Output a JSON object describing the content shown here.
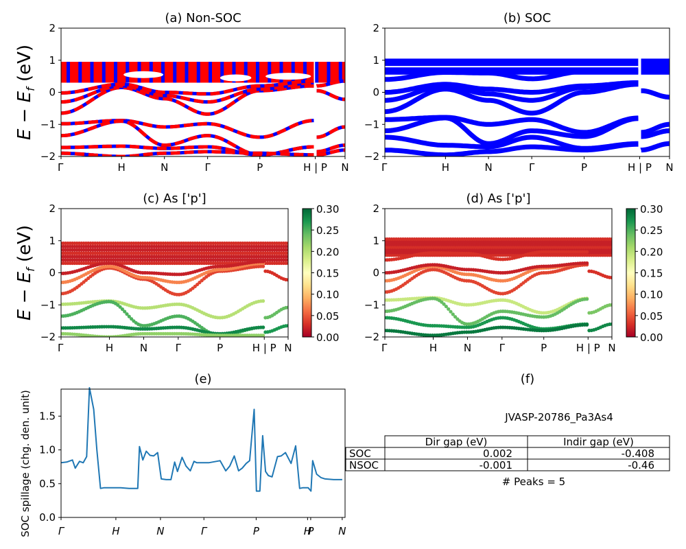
{
  "figure": {
    "ylabel_energy": "E − E_f (eV)",
    "kpath_labels": [
      "Γ",
      "H",
      "N",
      "Γ",
      "P",
      "H | P",
      "N"
    ],
    "kpath_positions": [
      0,
      0.213,
      0.364,
      0.516,
      0.7,
      0.895,
      1.0
    ],
    "energy_ticks": [
      "2",
      "1",
      "0",
      "−1",
      "−2"
    ],
    "energy_range": [
      -2,
      2
    ]
  },
  "chart_data": [
    {
      "id": "a",
      "type": "line",
      "title": "(a) Non-SOC",
      "xlabel": "",
      "ylabel": "E − E_f (eV)",
      "ylim": [
        -2,
        2
      ],
      "x_ticks": [
        "Γ",
        "H",
        "N",
        "Γ",
        "P",
        "H | P",
        "N"
      ],
      "y_ticks": [
        2,
        1,
        0,
        -1,
        -2
      ],
      "colors": [
        "#ff0000",
        "#0000ff"
      ],
      "note": "spin-up (red) / spin-down (blue) dashed bands",
      "bands": [
        {
          "x": [
            0,
            0.213,
            0.364,
            0.516,
            0.7,
            0.89
          ],
          "y": [
            -0.65,
            0.15,
            -0.2,
            -0.68,
            0.05,
            0.2
          ]
        },
        {
          "x": [
            0,
            0.213,
            0.364,
            0.516,
            0.7,
            0.89
          ],
          "y": [
            -0.3,
            0.2,
            -0.1,
            -0.3,
            0.1,
            0.3
          ]
        },
        {
          "x": [
            0,
            0.213,
            0.364,
            0.516,
            0.7,
            0.89
          ],
          "y": [
            -0.02,
            0.25,
            0.0,
            -0.05,
            0.2,
            0.35
          ]
        },
        {
          "x": [
            0.9,
            1.0
          ],
          "y": [
            0.05,
            -0.22
          ]
        },
        {
          "x": [
            0.9,
            1.0
          ],
          "y": [
            0.2,
            0.35
          ]
        },
        {
          "x": [
            0,
            0.213,
            0.364,
            0.516,
            0.7,
            0.89
          ],
          "y": [
            -0.98,
            -0.88,
            -1.08,
            -0.98,
            -1.4,
            -0.88
          ]
        },
        {
          "x": [
            0,
            0.213,
            0.364,
            0.516,
            0.7,
            0.89
          ],
          "y": [
            -1.35,
            -0.9,
            -1.65,
            -1.35,
            -1.95,
            -1.7
          ]
        },
        {
          "x": [
            0,
            0.213,
            0.364,
            0.516,
            0.7,
            0.89
          ],
          "y": [
            -1.72,
            -1.68,
            -1.75,
            -1.7,
            -1.95,
            -1.7
          ]
        },
        {
          "x": [
            0,
            0.213,
            0.364,
            0.516,
            0.7,
            0.89
          ],
          "y": [
            -1.9,
            -2.0,
            -1.9,
            -1.85,
            -1.9,
            -1.95
          ]
        },
        {
          "x": [
            0.9,
            1.0
          ],
          "y": [
            -1.4,
            -1.08
          ]
        },
        {
          "x": [
            0.9,
            1.0
          ],
          "y": [
            -1.85,
            -1.65
          ]
        },
        {
          "x": [
            0.9,
            1.0
          ],
          "y": [
            -1.95,
            -1.8
          ]
        }
      ],
      "dense_region": [
        0.3,
        0.95
      ]
    },
    {
      "id": "b",
      "type": "line",
      "title": "(b) SOC",
      "xlabel": "",
      "ylabel": "",
      "ylim": [
        -2,
        2
      ],
      "x_ticks": [
        "Γ",
        "H",
        "N",
        "Γ",
        "P",
        "H | P",
        "N"
      ],
      "y_ticks": [
        2,
        1,
        0,
        -1,
        -2
      ],
      "colors": [
        "#0000ff"
      ],
      "bands": [
        {
          "x": [
            0,
            0.213,
            0.364,
            0.516,
            0.7,
            0.89
          ],
          "y": [
            -0.6,
            0.1,
            -0.25,
            -0.65,
            0.0,
            0.25
          ]
        },
        {
          "x": [
            0,
            0.213,
            0.364,
            0.516,
            0.7,
            0.89
          ],
          "y": [
            -0.25,
            0.2,
            -0.05,
            -0.25,
            0.15,
            0.3
          ]
        },
        {
          "x": [
            0,
            0.213,
            0.364,
            0.516,
            0.7,
            0.89
          ],
          "y": [
            0.0,
            0.25,
            0.1,
            0.0,
            0.2,
            0.3
          ]
        },
        {
          "x": [
            0,
            0.213,
            0.364,
            0.516,
            0.7,
            0.89
          ],
          "y": [
            0.4,
            0.62,
            0.6,
            0.42,
            0.65,
            0.65
          ]
        },
        {
          "x": [
            0.9,
            1.0
          ],
          "y": [
            0.05,
            -0.15
          ]
        },
        {
          "x": [
            0,
            0.213,
            0.364,
            0.516,
            0.7,
            0.89
          ],
          "y": [
            -0.85,
            -0.78,
            -1.0,
            -0.85,
            -1.25,
            -0.8
          ]
        },
        {
          "x": [
            0,
            0.213,
            0.364,
            0.516,
            0.7,
            0.89
          ],
          "y": [
            -1.2,
            -0.8,
            -1.6,
            -1.2,
            -1.38,
            -0.82
          ]
        },
        {
          "x": [
            0,
            0.213,
            0.364,
            0.516,
            0.7,
            0.89
          ],
          "y": [
            -1.4,
            -1.65,
            -1.7,
            -1.4,
            -1.75,
            -1.6
          ]
        },
        {
          "x": [
            0,
            0.213,
            0.364,
            0.516,
            0.7,
            0.89
          ],
          "y": [
            -1.8,
            -1.95,
            -1.85,
            -1.7,
            -1.8,
            -1.62
          ]
        },
        {
          "x": [
            0.9,
            1.0
          ],
          "y": [
            -1.25,
            -1.0
          ]
        },
        {
          "x": [
            0.9,
            1.0
          ],
          "y": [
            -1.38,
            -1.2
          ]
        },
        {
          "x": [
            0.9,
            1.0
          ],
          "y": [
            -1.8,
            -1.6
          ]
        }
      ],
      "dense_region": [
        0.55,
        1.05
      ]
    },
    {
      "id": "c",
      "type": "scatter",
      "title": "(c)  As ['p']",
      "ylabel": "E − E_f (eV)",
      "ylim": [
        -2,
        2
      ],
      "x_ticks": [
        "Γ",
        "H",
        "N",
        "Γ",
        "P",
        "H | P",
        "N"
      ],
      "y_ticks": [
        2,
        1,
        0,
        -1,
        -2
      ],
      "colorbar": {
        "colormap": "RdYlGn",
        "range": [
          0.0,
          0.3
        ],
        "ticks": [
          "0.30",
          "0.25",
          "0.20",
          "0.15",
          "0.10",
          "0.05",
          "0.00"
        ]
      },
      "bands": [
        {
          "x": [
            0,
            0.213,
            0.364,
            0.516,
            0.7,
            0.89
          ],
          "y": [
            -0.65,
            0.15,
            -0.2,
            -0.68,
            0.05,
            0.2
          ],
          "c": 0.04
        },
        {
          "x": [
            0,
            0.213,
            0.364,
            0.516,
            0.7,
            0.89
          ],
          "y": [
            -0.3,
            0.2,
            -0.15,
            -0.3,
            0.1,
            0.3
          ],
          "c": 0.07
        },
        {
          "x": [
            0,
            0.213,
            0.364,
            0.516,
            0.7,
            0.89
          ],
          "y": [
            -0.02,
            0.3,
            0.0,
            -0.05,
            0.2,
            0.35
          ],
          "c": 0.02
        },
        {
          "x": [
            0.9,
            1.0
          ],
          "y": [
            0.05,
            -0.22
          ],
          "c": 0.03
        },
        {
          "x": [
            0,
            0.213,
            0.364,
            0.516,
            0.7,
            0.89
          ],
          "y": [
            -0.98,
            -0.88,
            -1.1,
            -0.98,
            -1.4,
            -0.88
          ],
          "c": 0.2
        },
        {
          "x": [
            0,
            0.213,
            0.364,
            0.516,
            0.7,
            0.89
          ],
          "y": [
            -1.35,
            -0.9,
            -1.65,
            -1.35,
            -1.95,
            -1.7
          ],
          "c": 0.25
        },
        {
          "x": [
            0,
            0.213,
            0.364,
            0.516,
            0.7,
            0.89
          ],
          "y": [
            -1.72,
            -1.68,
            -1.75,
            -1.7,
            -1.9,
            -1.7
          ],
          "c": 0.28
        },
        {
          "x": [
            0,
            0.213,
            0.364,
            0.516,
            0.7,
            0.89
          ],
          "y": [
            -1.9,
            -2.0,
            -1.9,
            -1.9,
            -1.95,
            -1.95
          ],
          "c": 0.22
        },
        {
          "x": [
            0.9,
            1.0
          ],
          "y": [
            -1.4,
            -1.08
          ],
          "c": 0.24
        },
        {
          "x": [
            0.9,
            1.0
          ],
          "y": [
            -1.85,
            -1.65
          ],
          "c": 0.27
        }
      ],
      "dense_region": [
        0.3,
        0.92
      ]
    },
    {
      "id": "d",
      "type": "scatter",
      "title": "(d) As ['p']",
      "ylabel": "",
      "ylim": [
        -2,
        2
      ],
      "x_ticks": [
        "Γ",
        "H",
        "N",
        "Γ",
        "P",
        "H | P",
        "N"
      ],
      "y_ticks": [
        2,
        1,
        0,
        -1,
        -2
      ],
      "colorbar": {
        "colormap": "RdYlGn",
        "range": [
          0.0,
          0.3
        ],
        "ticks": [
          "0.30",
          "0.25",
          "0.20",
          "0.15",
          "0.10",
          "0.05",
          "0.00"
        ]
      },
      "bands": [
        {
          "x": [
            0,
            0.213,
            0.364,
            0.516,
            0.7,
            0.89
          ],
          "y": [
            -0.6,
            0.1,
            -0.25,
            -0.65,
            0.0,
            0.25
          ],
          "c": 0.04
        },
        {
          "x": [
            0,
            0.213,
            0.364,
            0.516,
            0.7,
            0.89
          ],
          "y": [
            -0.25,
            0.2,
            -0.05,
            -0.25,
            0.15,
            0.3
          ],
          "c": 0.07
        },
        {
          "x": [
            0,
            0.213,
            0.364,
            0.516,
            0.7,
            0.89
          ],
          "y": [
            0.0,
            0.25,
            0.1,
            0.0,
            0.2,
            0.3
          ],
          "c": 0.02
        },
        {
          "x": [
            0,
            0.213,
            0.364,
            0.516,
            0.7,
            0.89
          ],
          "y": [
            0.4,
            0.62,
            0.6,
            0.42,
            0.65,
            0.65
          ],
          "c": 0.03
        },
        {
          "x": [
            0.9,
            1.0
          ],
          "y": [
            0.05,
            -0.15
          ],
          "c": 0.03
        },
        {
          "x": [
            0,
            0.213,
            0.364,
            0.516,
            0.7,
            0.89
          ],
          "y": [
            -0.85,
            -0.78,
            -1.0,
            -0.85,
            -1.25,
            -0.8
          ],
          "c": 0.19
        },
        {
          "x": [
            0,
            0.213,
            0.364,
            0.516,
            0.7,
            0.89
          ],
          "y": [
            -1.2,
            -0.8,
            -1.6,
            -1.2,
            -1.38,
            -0.82
          ],
          "c": 0.24
        },
        {
          "x": [
            0,
            0.213,
            0.364,
            0.516,
            0.7,
            0.89
          ],
          "y": [
            -1.4,
            -1.65,
            -1.7,
            -1.4,
            -1.75,
            -1.6
          ],
          "c": 0.27
        },
        {
          "x": [
            0,
            0.213,
            0.364,
            0.516,
            0.7,
            0.89
          ],
          "y": [
            -1.8,
            -1.95,
            -1.85,
            -1.7,
            -1.8,
            -1.62
          ],
          "c": 0.29
        },
        {
          "x": [
            0.9,
            1.0
          ],
          "y": [
            -1.25,
            -1.0
          ],
          "c": 0.23
        },
        {
          "x": [
            0.9,
            1.0
          ],
          "y": [
            -1.8,
            -1.6
          ],
          "c": 0.28
        }
      ],
      "dense_region": [
        0.55,
        1.05
      ]
    },
    {
      "id": "e",
      "type": "line",
      "title": "(e)",
      "xlabel": "",
      "ylabel": "SOC spillage (chg. den. unit)",
      "ylim": [
        0.0,
        1.9
      ],
      "y_ticks": [
        "0.0",
        "0.5",
        "1.0",
        "1.5"
      ],
      "x_ticks": [
        "Γ",
        "H",
        "N",
        "Γ",
        "P",
        "H",
        "P",
        "N"
      ],
      "x_tick_positions": [
        0,
        0.193,
        0.35,
        0.503,
        0.687,
        0.868,
        0.879,
        0.99
      ],
      "color": "#1f77b4",
      "x": [
        0,
        0.02,
        0.04,
        0.05,
        0.065,
        0.078,
        0.09,
        0.1,
        0.115,
        0.126,
        0.139,
        0.152,
        0.165,
        0.18,
        0.21,
        0.24,
        0.27,
        0.276,
        0.288,
        0.3,
        0.313,
        0.326,
        0.34,
        0.353,
        0.37,
        0.387,
        0.4,
        0.41,
        0.426,
        0.44,
        0.455,
        0.468,
        0.478,
        0.5,
        0.52,
        0.56,
        0.58,
        0.594,
        0.61,
        0.625,
        0.638,
        0.652,
        0.664,
        0.68,
        0.688,
        0.7,
        0.71,
        0.72,
        0.73,
        0.743,
        0.762,
        0.775,
        0.79,
        0.81,
        0.826,
        0.84,
        0.852,
        0.858,
        0.87,
        0.88,
        0.886,
        0.9,
        0.915,
        0.93,
        0.96,
        0.98,
        0.99
      ],
      "y": [
        0.81,
        0.82,
        0.85,
        0.73,
        0.83,
        0.81,
        0.9,
        1.92,
        1.6,
        1.0,
        0.43,
        0.44,
        0.44,
        0.44,
        0.44,
        0.43,
        0.43,
        1.05,
        0.85,
        0.98,
        0.92,
        0.91,
        0.96,
        0.57,
        0.56,
        0.56,
        0.82,
        0.68,
        0.89,
        0.76,
        0.69,
        0.83,
        0.81,
        0.81,
        0.81,
        0.84,
        0.69,
        0.76,
        0.91,
        0.69,
        0.73,
        0.8,
        0.84,
        1.6,
        0.39,
        0.39,
        1.21,
        0.68,
        0.62,
        0.6,
        0.9,
        0.91,
        0.96,
        0.8,
        1.06,
        0.43,
        0.44,
        0.44,
        0.44,
        0.39,
        0.84,
        0.64,
        0.59,
        0.57,
        0.56,
        0.56,
        0.56
      ]
    },
    {
      "id": "f",
      "type": "table",
      "title": "(f)",
      "subtitle": "JVASP-20786_Pa3As4",
      "columns": [
        "",
        "Dir gap (eV)",
        "Indir gap (eV)"
      ],
      "rows": [
        [
          "SOC",
          "0.002",
          "-0.408"
        ],
        [
          "NSOC",
          "-0.001",
          "-0.46"
        ]
      ],
      "footer": "# Peaks = 5"
    }
  ]
}
